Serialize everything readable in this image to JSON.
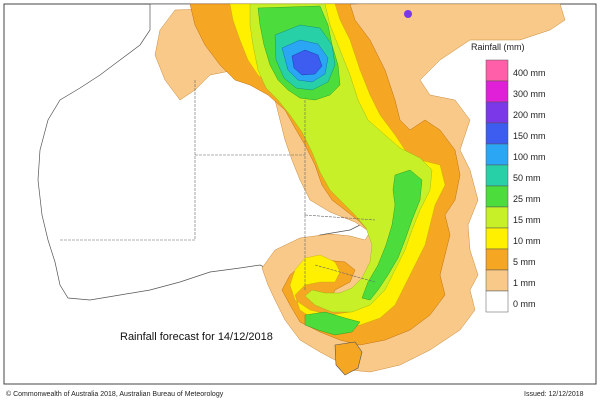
{
  "title": "Rainfall forecast for 14/12/2018",
  "legend": {
    "title": "Rainfall (mm)",
    "items": [
      {
        "label": "400 mm",
        "color": "#ff5fa8"
      },
      {
        "label": "300 mm",
        "color": "#e020d8"
      },
      {
        "label": "200 mm",
        "color": "#7a38e8"
      },
      {
        "label": "150 mm",
        "color": "#3d5cf0"
      },
      {
        "label": "100 mm",
        "color": "#2aa6f4"
      },
      {
        "label": "50 mm",
        "color": "#28d0a8"
      },
      {
        "label": "25 mm",
        "color": "#4cdc3c"
      },
      {
        "label": "15 mm",
        "color": "#c8f028"
      },
      {
        "label": "10 mm",
        "color": "#fff000"
      },
      {
        "label": "5 mm",
        "color": "#f5a623"
      },
      {
        "label": "1 mm",
        "color": "#f8c988"
      },
      {
        "label": "0 mm",
        "color": "#ffffff"
      }
    ]
  },
  "footer": {
    "copyright": "© Commonwealth of Australia 2018, Australian Bureau of Meteorology",
    "issued": "Issued: 12/12/2018"
  },
  "colors": {
    "land_dry": "#ffffff",
    "ocean": "#ffffff",
    "rain_1mm": "#f8c988",
    "rain_5mm": "#f5a623",
    "rain_10mm": "#fff000",
    "rain_15mm": "#c8f028",
    "rain_25mm": "#4cdc3c",
    "rain_50mm": "#28d0a8",
    "rain_100mm": "#2aa6f4",
    "rain_150mm": "#3d5cf0",
    "rain_200mm": "#7a38e8",
    "border": "#555555"
  }
}
